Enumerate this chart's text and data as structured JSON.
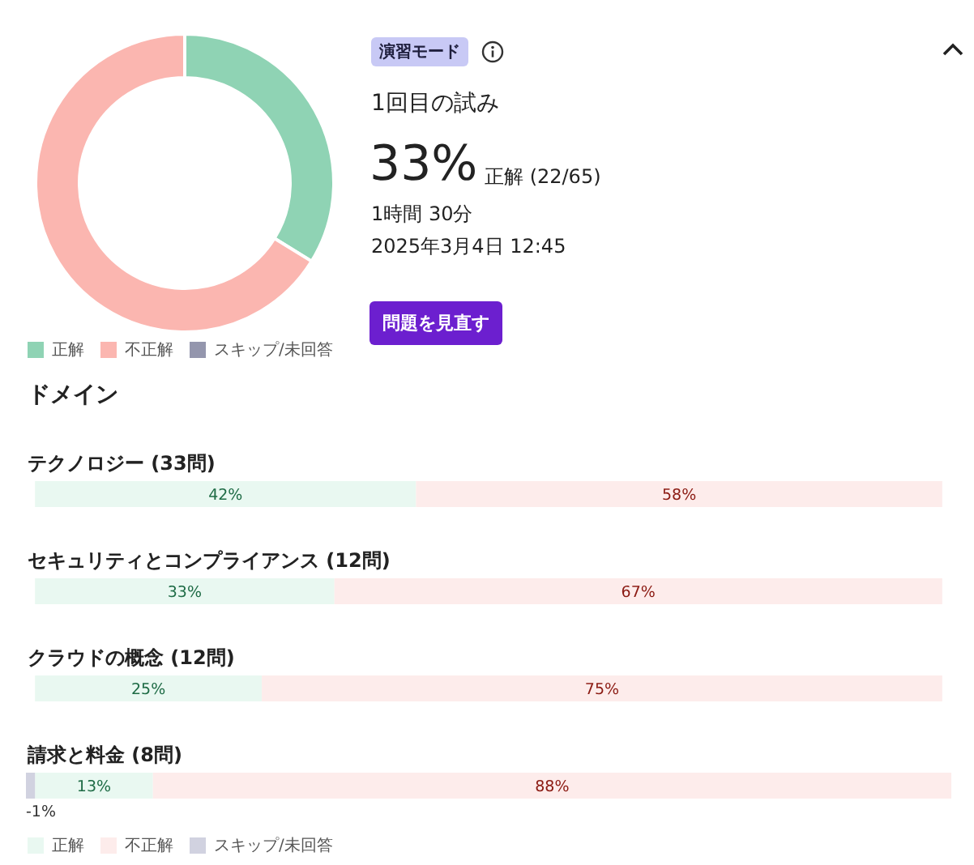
{
  "chart_data": [
    {
      "type": "donut",
      "categories": [
        "正解",
        "不正解",
        "スキップ/未回答"
      ],
      "values": [
        33.8,
        66.2,
        0
      ],
      "colors": [
        "#8fd3b4",
        "#fbb6b0",
        "#9496ad"
      ],
      "legend": "bottom",
      "annotations": [
        "演習モード",
        "1回目の試み",
        "33%",
        "正解 (22/65)",
        "1時間 30分",
        "2025年3月4日 12:45",
        "問題を見直す"
      ]
    },
    {
      "type": "bar",
      "orientation": "horizontal",
      "stacked": true,
      "title": "ドメイン",
      "categories": [
        "テクノロジー (33問)",
        "セキュリティとコンプライアンス (12問)",
        "クラウドの概念 (12問)",
        "請求と料金 (8問)"
      ],
      "legend": "bottom",
      "series": [
        {
          "name": "正解",
          "color": "#e9f8f1",
          "values": [
            42,
            33,
            25,
            13
          ],
          "value_labels": [
            "42%",
            "33%",
            "25%",
            "13%"
          ]
        },
        {
          "name": "不正解",
          "color": "#fdeceb",
          "values": [
            58,
            67,
            75,
            88
          ],
          "value_labels": [
            "58%",
            "67%",
            "75%",
            "88%"
          ]
        },
        {
          "name": "スキップ/未回答",
          "color": "#d1d2e0",
          "values": [
            null,
            null,
            null,
            -1
          ],
          "value_labels": [
            null,
            null,
            null,
            "-1%"
          ]
        }
      ]
    }
  ]
}
